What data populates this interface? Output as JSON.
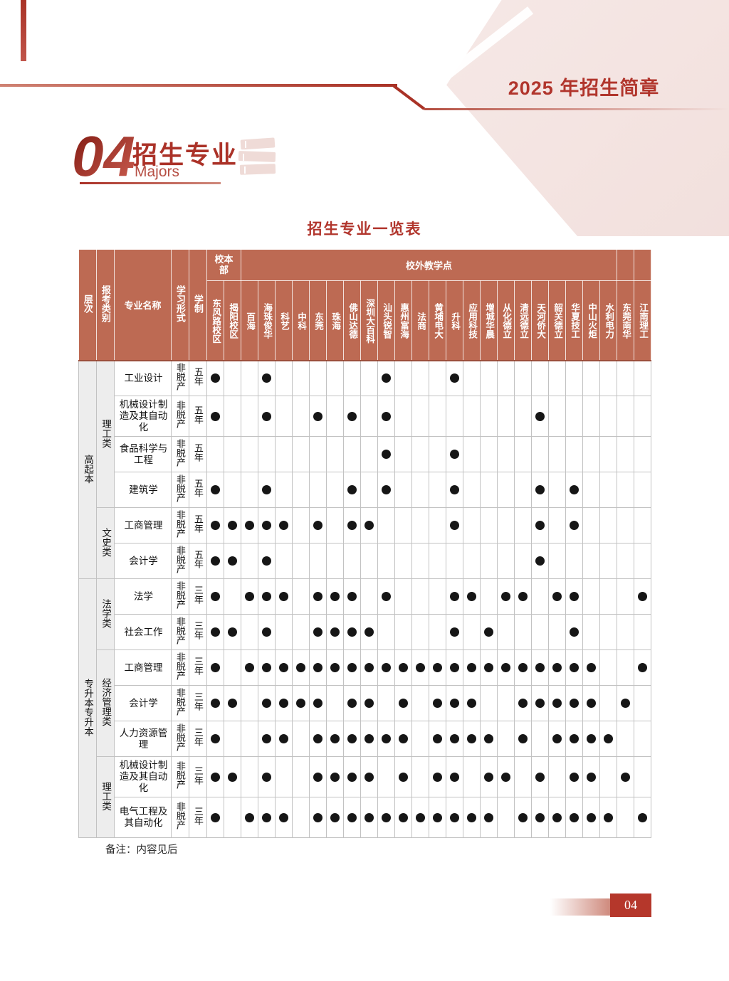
{
  "page": {
    "header_title": "2025 年招生简章",
    "section_number": "04",
    "section_title": "招生专业",
    "section_subtitle": "Majors",
    "table_title": "招生专业一览表",
    "note": "备注：内容见后",
    "page_number": "04"
  },
  "colors": {
    "accent_red": "#b1352c",
    "table_header_bg": "#bd6a53",
    "pale_pink": "#f5e7e4",
    "dot": "#161616"
  },
  "icons": {
    "books_icon": "book-stack"
  },
  "table": {
    "headers": {
      "level": "层次",
      "category": "报考类别",
      "major": "专业名称",
      "study_form": "学习形式",
      "duration": "学制",
      "main_campus_group": "校本部",
      "offsite_group": "校外教学点",
      "locations": [
        "东风路校区",
        "揭阳校区",
        "百海",
        "海珠俊华",
        "科艺",
        "中科",
        "东莞",
        "珠海",
        "佛山达德",
        "深圳大百科",
        "汕头锐智",
        "惠州富海",
        "法商",
        "黄埔电大",
        "升科",
        "应用科技",
        "增城华晨",
        "从化德立",
        "清远德立",
        "天河侨大",
        "韶关德立",
        "华夏技工",
        "中山火炬",
        "水利电力",
        "东莞南华",
        "江南理工"
      ]
    },
    "levels": [
      {
        "label": "高起本",
        "rows": 6
      },
      {
        "label": "专升本专升本",
        "rows": 7
      }
    ],
    "categories": [
      {
        "label": "理工类",
        "rows": 4
      },
      {
        "label": "文史类",
        "rows": 2
      },
      {
        "label": "法学类",
        "rows": 2
      },
      {
        "label": "经济管理类",
        "rows": 3
      },
      {
        "label": "理工类",
        "rows": 2
      }
    ],
    "rows": [
      {
        "major": "工业设计",
        "form": "非脱产",
        "duration": "五年",
        "dots": [
          1,
          4,
          11,
          15
        ]
      },
      {
        "major": "机械设计制造及其自动化",
        "form": "非脱产",
        "duration": "五年",
        "dots": [
          1,
          4,
          7,
          9,
          11,
          20
        ]
      },
      {
        "major": "食品科学与工程",
        "form": "非脱产",
        "duration": "五年",
        "dots": [
          11,
          15
        ]
      },
      {
        "major": "建筑学",
        "form": "非脱产",
        "duration": "五年",
        "dots": [
          1,
          4,
          9,
          11,
          15,
          20,
          22
        ]
      },
      {
        "major": "工商管理",
        "form": "非脱产",
        "duration": "五年",
        "dots": [
          1,
          2,
          3,
          4,
          5,
          7,
          9,
          10,
          15,
          20,
          22
        ]
      },
      {
        "major": "会计学",
        "form": "非脱产",
        "duration": "五年",
        "dots": [
          1,
          2,
          4,
          20
        ]
      },
      {
        "major": "法学",
        "form": "非脱产",
        "duration": "三年",
        "dots": [
          1,
          3,
          4,
          5,
          7,
          8,
          9,
          11,
          15,
          16,
          18,
          19,
          21,
          22,
          26
        ]
      },
      {
        "major": "社会工作",
        "form": "非脱产",
        "duration": "三年",
        "dots": [
          1,
          2,
          4,
          7,
          8,
          9,
          10,
          15,
          17,
          22
        ]
      },
      {
        "major": "工商管理",
        "form": "非脱产",
        "duration": "三年",
        "dots": [
          1,
          3,
          4,
          5,
          6,
          7,
          8,
          9,
          10,
          11,
          12,
          13,
          14,
          15,
          16,
          17,
          18,
          19,
          20,
          21,
          22,
          23,
          26
        ]
      },
      {
        "major": "会计学",
        "form": "非脱产",
        "duration": "三年",
        "dots": [
          1,
          2,
          4,
          5,
          6,
          7,
          9,
          10,
          12,
          14,
          15,
          16,
          19,
          20,
          21,
          22,
          23,
          25
        ]
      },
      {
        "major": "人力资源管理",
        "form": "非脱产",
        "duration": "三年",
        "dots": [
          1,
          4,
          5,
          7,
          8,
          9,
          10,
          11,
          12,
          14,
          15,
          16,
          17,
          19,
          21,
          22,
          23,
          24
        ]
      },
      {
        "major": "机械设计制造及其自动化",
        "form": "非脱产",
        "duration": "三年",
        "dots": [
          1,
          2,
          4,
          7,
          8,
          9,
          10,
          12,
          14,
          15,
          17,
          18,
          20,
          22,
          23,
          25
        ]
      },
      {
        "major": "电气工程及其自动化",
        "form": "非脱产",
        "duration": "三年",
        "dots": [
          1,
          3,
          4,
          5,
          7,
          8,
          9,
          10,
          11,
          12,
          13,
          14,
          15,
          16,
          17,
          19,
          20,
          21,
          22,
          23,
          24,
          26
        ]
      }
    ]
  }
}
